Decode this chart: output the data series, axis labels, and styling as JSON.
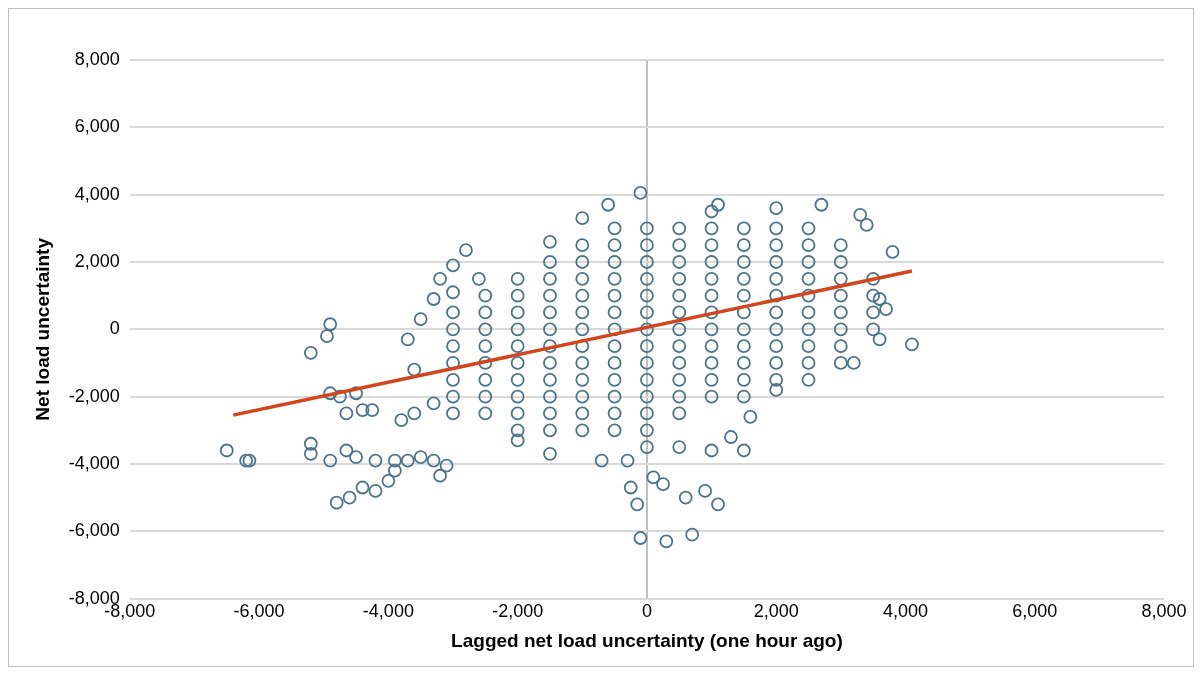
{
  "chart_data": {
    "type": "scatter",
    "xlabel": "Lagged net load uncertainty (one hour ago)",
    "ylabel": "Net load uncertainty",
    "xlim": [
      -8000,
      8000
    ],
    "ylim": [
      -8000,
      8000
    ],
    "xticks": [
      {
        "value": -8000,
        "label": "-8,000"
      },
      {
        "value": -6000,
        "label": "-6,000"
      },
      {
        "value": -4000,
        "label": "-4,000"
      },
      {
        "value": -2000,
        "label": "-2,000"
      },
      {
        "value": 0,
        "label": "0"
      },
      {
        "value": 2000,
        "label": "2,000"
      },
      {
        "value": 4000,
        "label": "4,000"
      },
      {
        "value": 6000,
        "label": "6,000"
      },
      {
        "value": 8000,
        "label": "8,000"
      }
    ],
    "yticks": [
      {
        "value": -8000,
        "label": "-8,000"
      },
      {
        "value": -6000,
        "label": "-6,000"
      },
      {
        "value": -4000,
        "label": "-4,000"
      },
      {
        "value": -2000,
        "label": "-2,000"
      },
      {
        "value": 0,
        "label": "0"
      },
      {
        "value": 2000,
        "label": "2,000"
      },
      {
        "value": 4000,
        "label": "4,000"
      },
      {
        "value": 6000,
        "label": "6,000"
      },
      {
        "value": 8000,
        "label": "8,000"
      }
    ],
    "grid": "y",
    "legend": false,
    "series": [
      {
        "color": "#4e7389",
        "marker": "circle",
        "x": [
          -3000,
          -3000,
          -3000,
          -3000,
          -3000,
          -3000,
          -3000,
          -2500,
          -2500,
          -2500,
          -2500,
          -2500,
          -2500,
          -2500,
          -2500,
          -2000,
          -2000,
          -2000,
          -2000,
          -2000,
          -2000,
          -2000,
          -2000,
          -2000,
          -2000,
          -1500,
          -1500,
          -1500,
          -1500,
          -1500,
          -1500,
          -1500,
          -1500,
          -1500,
          -1500,
          -1500,
          -1000,
          -1000,
          -1000,
          -1000,
          -1000,
          -1000,
          -1000,
          -1000,
          -1000,
          -1000,
          -1000,
          -1000,
          -500,
          -500,
          -500,
          -500,
          -500,
          -500,
          -500,
          -500,
          -500,
          -500,
          -500,
          -500,
          -500,
          0,
          0,
          0,
          0,
          0,
          0,
          0,
          0,
          0,
          0,
          0,
          0,
          0,
          500,
          500,
          500,
          500,
          500,
          500,
          500,
          500,
          500,
          500,
          500,
          500,
          1000,
          1000,
          1000,
          1000,
          1000,
          1000,
          1000,
          1000,
          1000,
          1000,
          1000,
          1000,
          1500,
          1500,
          1500,
          1500,
          1500,
          1500,
          1500,
          1500,
          1500,
          1500,
          1500,
          2000,
          2000,
          2000,
          2000,
          2000,
          2000,
          2000,
          2000,
          2000,
          2000,
          2500,
          2500,
          2500,
          2500,
          2500,
          2500,
          2500,
          2500,
          2500,
          3000,
          3000,
          3000,
          3000,
          3000,
          3000,
          3000,
          3500,
          3500,
          3500,
          3500,
          -6500,
          -6200,
          -6150,
          -5200,
          -4900,
          -4950,
          -4900,
          -4750,
          -4500,
          -4400,
          -4650,
          -4250,
          -5200,
          -5200,
          -4900,
          -4650,
          -4500,
          -4200,
          -4800,
          -4600,
          -4400,
          -4200,
          -4000,
          -3900,
          -3900,
          -3700,
          -3500,
          -3300,
          -3200,
          -3100,
          -3800,
          -3600,
          -3300,
          -3600,
          -3700,
          -3500,
          -3300,
          -3200,
          -3000,
          -2800,
          -3000,
          -2600,
          -2000,
          -1500,
          -700,
          -300,
          -250,
          -150,
          -100,
          300,
          700,
          100,
          250,
          600,
          900,
          1100,
          0,
          500,
          1000,
          1500,
          1300,
          1600,
          4100,
          3600,
          3700,
          3600,
          3800,
          3400,
          3300,
          2700,
          2000,
          1100,
          -600,
          -100,
          -1000,
          -1500,
          3200,
          3000,
          2500,
          2000
        ],
        "values": [
          -2500,
          -2000,
          -1500,
          -1000,
          -500,
          0,
          500,
          -2500,
          -2000,
          -1500,
          -1000,
          -500,
          0,
          500,
          1000,
          -3000,
          -2500,
          -2000,
          -1500,
          -1000,
          -500,
          0,
          500,
          1000,
          1500,
          -3000,
          -2500,
          -2000,
          -1500,
          -1000,
          -500,
          0,
          500,
          1000,
          1500,
          2000,
          -3000,
          -2500,
          -2000,
          -1500,
          -1000,
          -500,
          0,
          500,
          1000,
          1500,
          2000,
          2500,
          -3000,
          -2500,
          -2000,
          -1500,
          -1000,
          -500,
          0,
          500,
          1000,
          1500,
          2000,
          2500,
          3000,
          -3000,
          -2500,
          -2000,
          -1500,
          -1000,
          -500,
          0,
          500,
          1000,
          1500,
          2000,
          2500,
          3000,
          -2500,
          -2000,
          -1500,
          -1000,
          -500,
          0,
          500,
          1000,
          1500,
          2000,
          2500,
          3000,
          -2000,
          -1500,
          -1000,
          -500,
          0,
          500,
          1000,
          1500,
          2000,
          2500,
          3000,
          3500,
          -2000,
          -1500,
          -1000,
          -500,
          0,
          500,
          1000,
          1500,
          2000,
          2500,
          3000,
          -1500,
          -1000,
          -500,
          0,
          500,
          1000,
          1500,
          2000,
          2500,
          3000,
          -1000,
          -500,
          0,
          500,
          1000,
          1500,
          2000,
          2500,
          3000,
          -500,
          0,
          500,
          1000,
          1500,
          2000,
          2500,
          0,
          500,
          1000,
          1500,
          -3600,
          -3900,
          -3900,
          -700,
          150,
          -200,
          -1900,
          -2000,
          -1900,
          -2400,
          -2500,
          -2400,
          -3400,
          -3700,
          -3900,
          -3600,
          -3800,
          -3900,
          -5150,
          -5000,
          -4700,
          -4800,
          -4500,
          -4200,
          -3900,
          -3900,
          -3800,
          -3900,
          -4350,
          -4050,
          -2700,
          -2500,
          -2200,
          -1200,
          -300,
          300,
          900,
          1500,
          1900,
          2350,
          1100,
          1500,
          -3300,
          -3700,
          -3900,
          -3900,
          -4700,
          -5200,
          -6200,
          -6300,
          -6100,
          -4400,
          -4600,
          -5000,
          -4800,
          -5200,
          -3500,
          -3500,
          -3600,
          -3600,
          -3200,
          -2600,
          -450,
          -300,
          600,
          900,
          2300,
          3100,
          3400,
          3700,
          3600,
          3700,
          3700,
          4050,
          3300,
          2600,
          -1000,
          -1000,
          -1500,
          -1800
        ]
      },
      {
        "type": "line",
        "color": "#d0471f",
        "x": [
          -6400,
          4100
        ],
        "values": [
          -2550,
          1730
        ]
      }
    ]
  }
}
